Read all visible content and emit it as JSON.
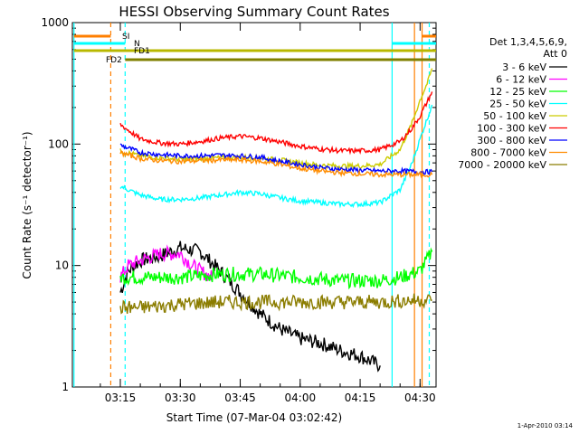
{
  "chart_data": {
    "type": "line",
    "title": "HESSI Observing Summary Count Rates",
    "xlabel": "Start Time (07-Mar-04 03:02:42)",
    "ylabel": "Count Rate (s⁻¹ detector⁻¹)",
    "yscale": "log",
    "ylim": [
      1,
      1000
    ],
    "ytick_labels": [
      "1",
      "10",
      "100",
      "1000"
    ],
    "xlim_min": [
      3.0,
      37.0
    ],
    "xlim_min_note_hidden": true,
    "xtick_labels": [
      "03:15",
      "03:30",
      "03:45",
      "04:00",
      "04:15",
      "04:30"
    ],
    "legend": {
      "header1": "Det 1,3,4,5,6,9,",
      "header2": "Att 0",
      "position": "right"
    },
    "timestamp": "1-Apr-2010 03:14",
    "flag_bars": [
      {
        "label": "SI",
        "color": "#ff7f00"
      },
      {
        "label": "N",
        "color": "#00ffff"
      },
      {
        "label": "FD1",
        "color": "#b8b800"
      },
      {
        "label": "FD2",
        "color": "#808000"
      }
    ],
    "series": [
      {
        "name": "3 - 6 keV",
        "color": "#000000",
        "x": [
          "03:15",
          "03:17",
          "03:20",
          "03:25",
          "03:30",
          "03:35",
          "03:40",
          "03:45",
          "03:50",
          "03:55",
          "04:00",
          "04:05",
          "04:10",
          "04:15",
          "04:20"
        ],
        "y": [
          6,
          9,
          11,
          12,
          14,
          13,
          9,
          6,
          4,
          3,
          2.5,
          2.3,
          2.0,
          1.8,
          1.5
        ]
      },
      {
        "name": "6 - 12 keV",
        "color": "#ff00ff",
        "x": [
          "03:15",
          "03:17",
          "03:20",
          "03:25",
          "03:30",
          "03:33",
          "03:35",
          "03:38"
        ],
        "y": [
          8,
          10,
          11,
          12.5,
          12.5,
          10,
          9,
          8
        ]
      },
      {
        "name": "12 - 25 keV",
        "color": "#00ff00",
        "x": [
          "03:15",
          "03:20",
          "03:30",
          "03:40",
          "03:45",
          "03:50",
          "04:00",
          "04:10",
          "04:20",
          "04:25",
          "04:30",
          "04:33"
        ],
        "y": [
          8,
          8,
          8,
          8.5,
          8.5,
          8.5,
          8,
          7.5,
          7.5,
          8,
          9,
          13
        ]
      },
      {
        "name": "25 - 50 keV",
        "color": "#00ffff",
        "x": [
          "03:15",
          "03:20",
          "03:25",
          "03:30",
          "03:35",
          "03:40",
          "03:45",
          "03:50",
          "03:55",
          "04:00",
          "04:05",
          "04:10",
          "04:15",
          "04:20",
          "04:25",
          "04:28",
          "04:30",
          "04:32",
          "04:33"
        ],
        "y": [
          45,
          38,
          35,
          35,
          36,
          38,
          40,
          39,
          36,
          34,
          33,
          32,
          32,
          33,
          42,
          70,
          110,
          170,
          210
        ]
      },
      {
        "name": "50 - 100 keV",
        "color": "#cccc00",
        "x": [
          "03:15",
          "03:20",
          "03:25",
          "03:30",
          "03:35",
          "03:40",
          "03:45",
          "03:50",
          "03:55",
          "04:00",
          "04:05",
          "04:10",
          "04:15",
          "04:20",
          "04:25",
          "04:28",
          "04:30",
          "04:32",
          "04:33"
        ],
        "y": [
          88,
          80,
          77,
          75,
          76,
          77,
          78,
          77,
          74,
          70,
          67,
          66,
          66,
          68,
          90,
          150,
          230,
          330,
          420
        ]
      },
      {
        "name": "100 - 300 keV",
        "color": "#ff0000",
        "x": [
          "03:15",
          "03:20",
          "03:25",
          "03:30",
          "03:35",
          "03:40",
          "03:45",
          "03:50",
          "03:55",
          "04:00",
          "04:05",
          "04:10",
          "04:15",
          "04:20",
          "04:25",
          "04:28",
          "04:30",
          "04:32",
          "04:33"
        ],
        "y": [
          145,
          110,
          102,
          100,
          105,
          112,
          116,
          112,
          104,
          96,
          91,
          88,
          88,
          90,
          105,
          135,
          170,
          230,
          270
        ]
      },
      {
        "name": "300 - 800 keV",
        "color": "#0000ff",
        "x": [
          "03:15",
          "03:20",
          "03:25",
          "03:30",
          "03:35",
          "03:40",
          "03:45",
          "03:50",
          "03:55",
          "04:00",
          "04:05",
          "04:10",
          "04:15",
          "04:20",
          "04:25",
          "04:30",
          "04:33"
        ],
        "y": [
          98,
          85,
          82,
          80,
          80,
          81,
          80,
          78,
          72,
          68,
          64,
          62,
          61,
          60,
          60,
          59,
          59
        ]
      },
      {
        "name": "800 - 7000 keV",
        "color": "#ff8c00",
        "x": [
          "03:15",
          "03:20",
          "03:25",
          "03:30",
          "03:35",
          "03:40",
          "03:45",
          "03:50",
          "03:55",
          "04:00",
          "04:05",
          "04:10",
          "04:15",
          "04:20",
          "04:25",
          "04:30",
          "04:33"
        ],
        "y": [
          85,
          76,
          73,
          72,
          73,
          74,
          74,
          72,
          68,
          63,
          60,
          58,
          57,
          56,
          56,
          56,
          56
        ]
      },
      {
        "name": "7000 - 20000 keV",
        "color": "#8b7d00",
        "x": [
          "03:15",
          "03:20",
          "03:30",
          "03:40",
          "03:45",
          "03:50",
          "04:00",
          "04:10",
          "04:20",
          "04:30",
          "04:33"
        ],
        "y": [
          4.5,
          4.5,
          4.8,
          5.0,
          5.0,
          5.0,
          5.0,
          5.0,
          5.0,
          5.2,
          5.2
        ]
      }
    ]
  }
}
